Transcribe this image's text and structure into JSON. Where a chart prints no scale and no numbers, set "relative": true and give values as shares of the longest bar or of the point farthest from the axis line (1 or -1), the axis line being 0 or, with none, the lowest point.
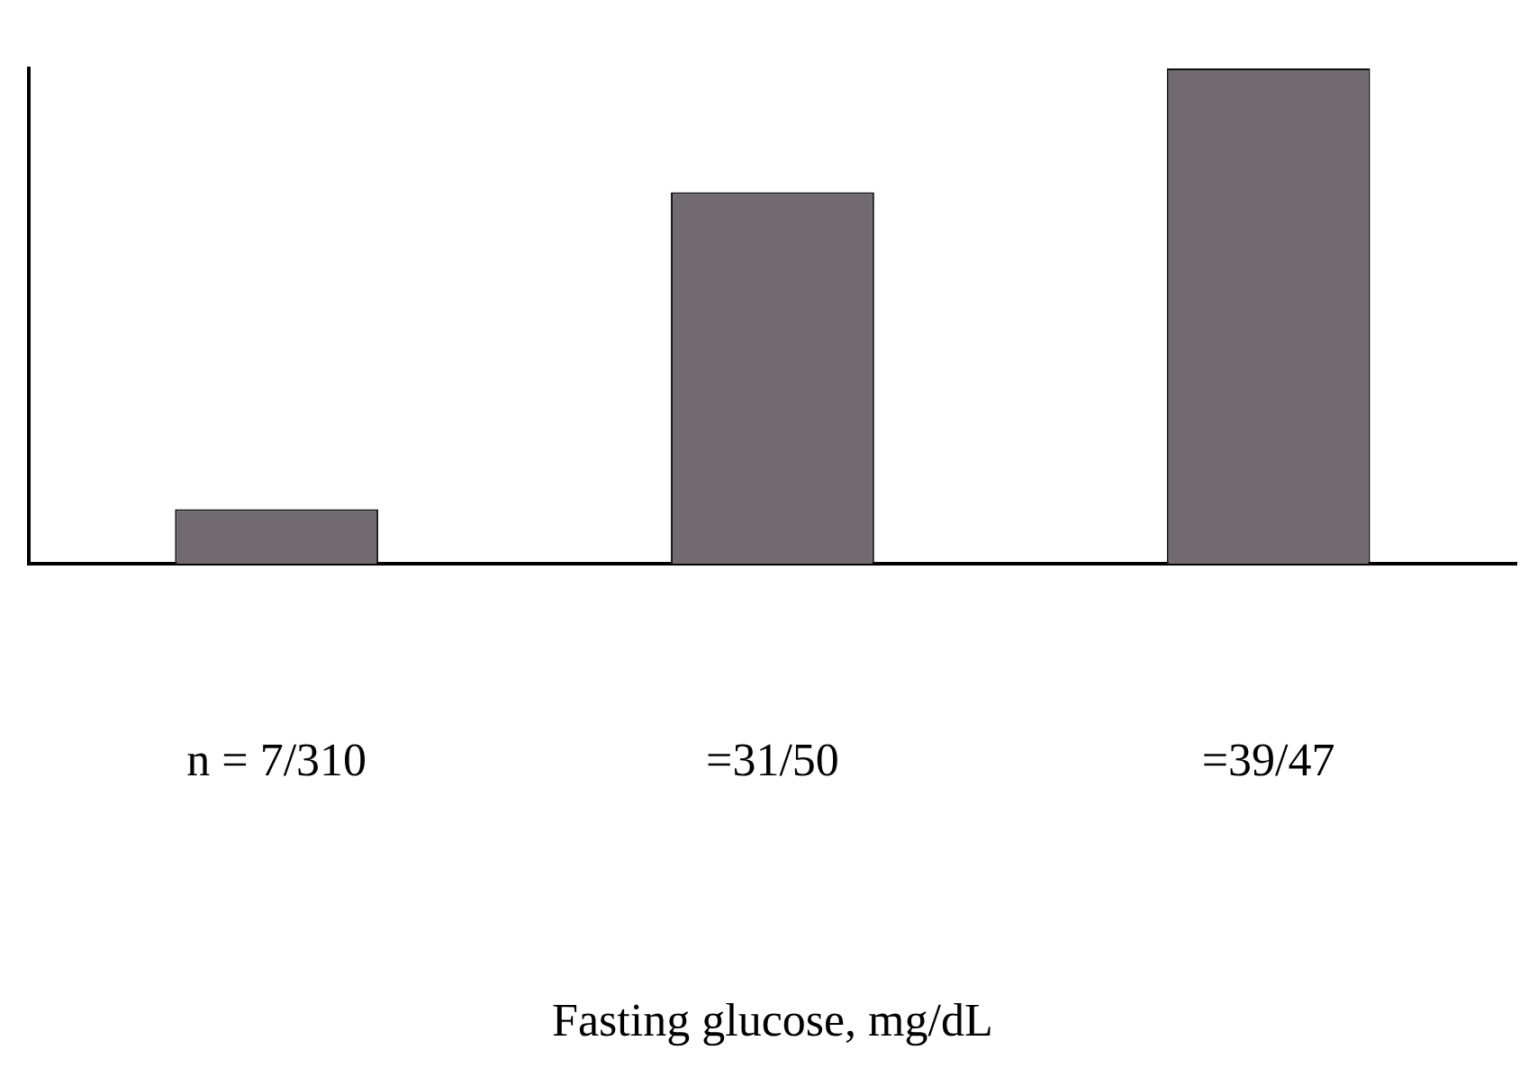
{
  "chart_data": {
    "type": "bar",
    "relative": true,
    "categories": [
      "n = 7/310",
      "=31/50",
      "=39/47"
    ],
    "values": [
      0.11,
      0.75,
      1
    ],
    "color": "#716b70",
    "xlabel": "Fasting glucose, mg/dL",
    "grid": false,
    "legend": false
  }
}
